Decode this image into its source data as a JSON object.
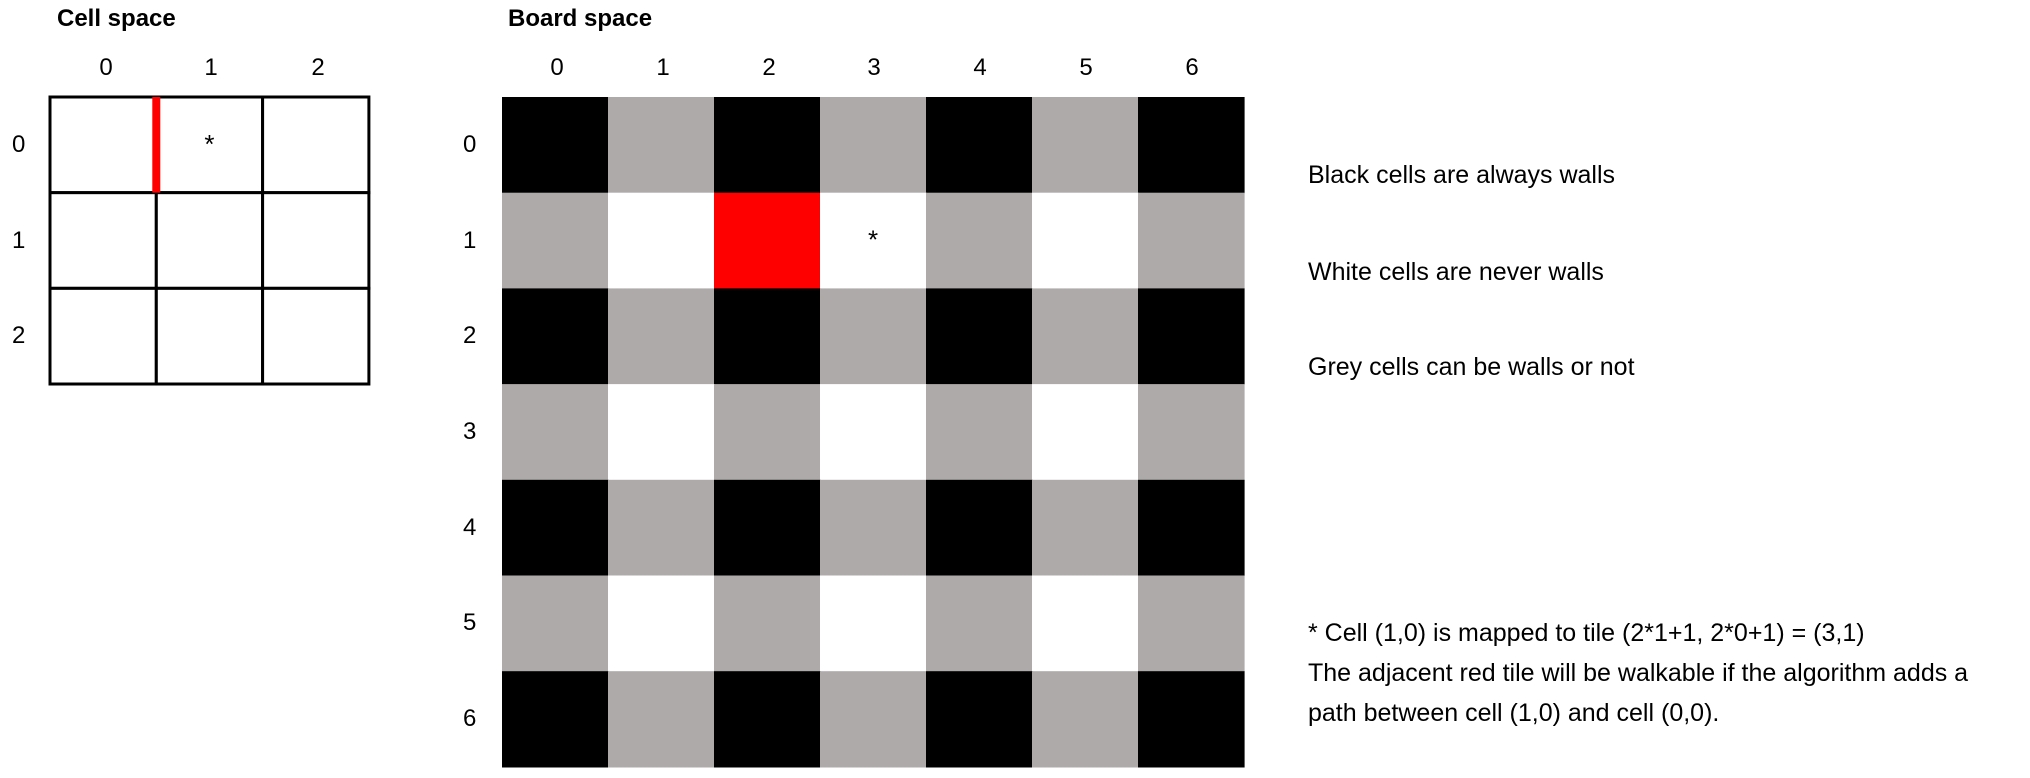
{
  "cell_space": {
    "title": "Cell space",
    "col_labels": [
      "0",
      "1",
      "2"
    ],
    "row_labels": [
      "0",
      "1",
      "2"
    ],
    "marker": "*",
    "marker_cell": [
      1,
      0
    ],
    "highlight_wall": "left edge of cell (1,0)"
  },
  "board_space": {
    "title": "Board space",
    "col_labels": [
      "0",
      "1",
      "2",
      "3",
      "4",
      "5",
      "6"
    ],
    "row_labels": [
      "0",
      "1",
      "2",
      "3",
      "4",
      "5",
      "6"
    ],
    "marker": "*",
    "marker_tile": [
      3,
      1
    ],
    "red_tile": [
      2,
      1
    ]
  },
  "colors": {
    "wall": "#000000",
    "open": "#ffffff",
    "maybe": "#aeaaaa",
    "highlight": "#ff0000"
  },
  "notes": {
    "black": "Black cells are always walls",
    "white": "White cells are never walls",
    "grey": "Grey cells can be walls or not",
    "mapping": "* Cell (1,0) is mapped to tile (2*1+1, 2*0+1) = (3,1)",
    "explain_1": "The adjacent red tile will be walkable if the algorithm adds a",
    "explain_2": "path between cell (1,0) and cell (0,0)."
  }
}
